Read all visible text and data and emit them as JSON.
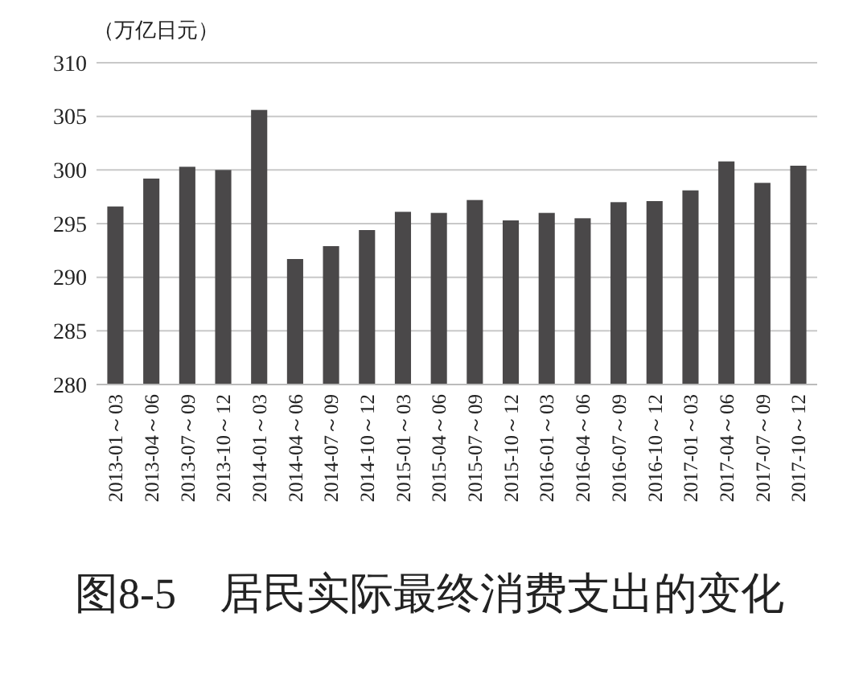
{
  "chart_data": {
    "type": "bar",
    "title": "图8-5　居民实际最终消费支出的变化",
    "ylabel": "（万亿日元）",
    "categories": [
      "2013-01～03",
      "2013-04～06",
      "2013-07～09",
      "2013-10～12",
      "2014-01～03",
      "2014-04～06",
      "2014-07～09",
      "2014-10～12",
      "2015-01～03",
      "2015-04～06",
      "2015-07～09",
      "2015-10～12",
      "2016-01～03",
      "2016-04～06",
      "2016-07～09",
      "2016-10～12",
      "2017-01～03",
      "2017-04～06",
      "2017-07～09",
      "2017-10～12"
    ],
    "values": [
      296.6,
      299.2,
      300.3,
      300.0,
      305.6,
      291.7,
      292.9,
      294.4,
      296.1,
      296.0,
      297.2,
      295.3,
      296.0,
      295.5,
      297.0,
      297.1,
      298.1,
      300.8,
      298.8,
      300.4
    ],
    "color": "#4a4849",
    "ylim": [
      280,
      310
    ],
    "yticks": [
      280,
      285,
      290,
      295,
      300,
      305,
      310
    ],
    "grid": "y"
  }
}
